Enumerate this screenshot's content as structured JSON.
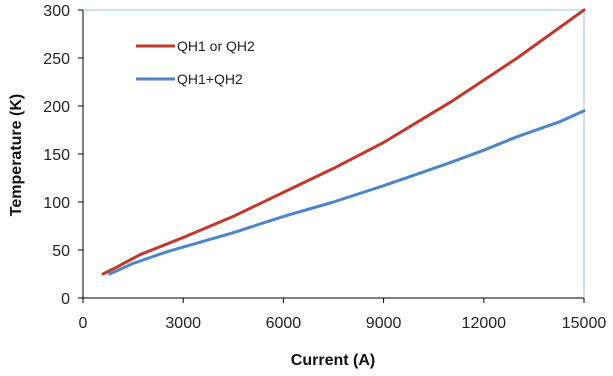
{
  "chart_data": {
    "type": "line",
    "title": "",
    "xlabel": "Current (A)",
    "ylabel": "Temperature (K)",
    "xlim": [
      0,
      15000
    ],
    "ylim": [
      0,
      300
    ],
    "x_ticks": [
      "0",
      "3000",
      "6000",
      "9000",
      "12000",
      "15000"
    ],
    "y_ticks": [
      "0",
      "50",
      "100",
      "150",
      "200",
      "250",
      "300"
    ],
    "grid": false,
    "legend_position": "top-left",
    "series": [
      {
        "name": "QH1 or QH2",
        "color": "#c0392b",
        "x": [
          600,
          1000,
          1700,
          3000,
          4500,
          6000,
          7500,
          9000,
          10000,
          11000,
          12000,
          13000,
          14000,
          15000
        ],
        "y": [
          25,
          32,
          45,
          63,
          85,
          110,
          135,
          162,
          183,
          204,
          227,
          250,
          275,
          300
        ]
      },
      {
        "name": "QH1+QH2",
        "color": "#4a86c8",
        "x": [
          800,
          1500,
          2500,
          3000,
          4500,
          6000,
          7500,
          9000,
          10000,
          11000,
          12000,
          13000,
          14300,
          15000
        ],
        "y": [
          25,
          36,
          48,
          53,
          68,
          85,
          100,
          117,
          129,
          141,
          154,
          168,
          184,
          195
        ]
      }
    ]
  }
}
